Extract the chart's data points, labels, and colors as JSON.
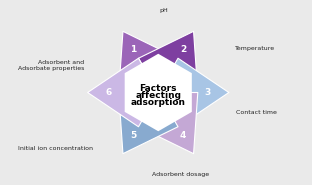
{
  "title": "Factors\naffecting\nadsorption",
  "title_fontsize": 6.5,
  "title_fontweight": "bold",
  "labels": [
    "1",
    "2",
    "3",
    "4",
    "5",
    "6"
  ],
  "background": "#eaeaea",
  "sector_colors": [
    "#a060b0",
    "#8844a0",
    "#b0c8e8",
    "#c0a0d0",
    "#80a8cc",
    "#c8b0e0"
  ],
  "figsize": [
    3.12,
    1.85
  ],
  "dpi": 100
}
